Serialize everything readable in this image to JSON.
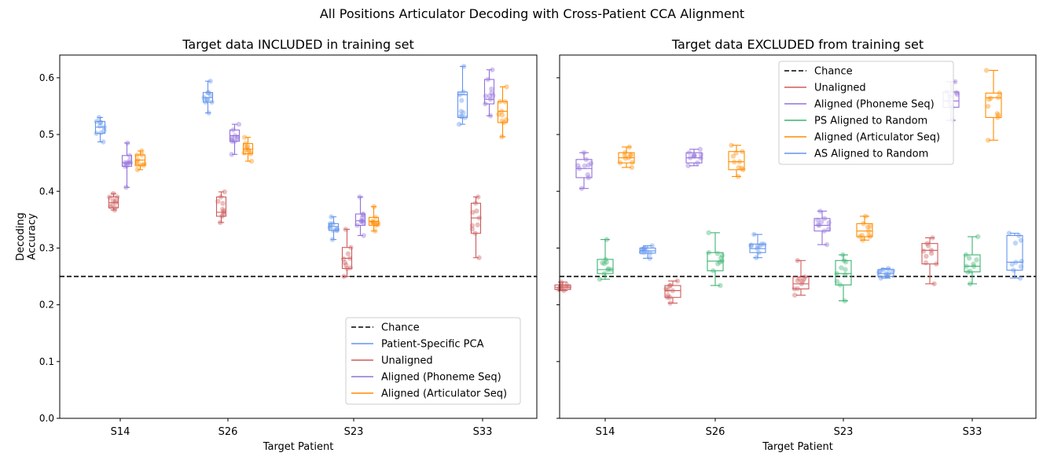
{
  "figure": {
    "suptitle": "All Positions Articulator Decoding with Cross-Patient CCA Alignment"
  },
  "colors": {
    "pca": "#6495ED",
    "unaligned": "#CD5C5C",
    "phoneme": "#9370DB",
    "articulator": "#FF8C00",
    "ps_random": "#3CB371",
    "as_random": "#6495ED",
    "chance": "#000000"
  },
  "chart_data": [
    {
      "type": "box",
      "title": "Target data INCLUDED in training set",
      "xlabel": "Target Patient",
      "ylabel": "Decoding Accuracy",
      "ylim": [
        0,
        0.64
      ],
      "yticks": [
        0.0,
        0.1,
        0.2,
        0.3,
        0.4,
        0.5,
        0.6
      ],
      "ytick_labels": [
        "0.0",
        "0.1",
        "0.2",
        "0.3",
        "0.4",
        "0.5",
        "0.6"
      ],
      "categories": [
        "S14",
        "S26",
        "S23",
        "S33"
      ],
      "chance": 0.25,
      "legend_position": "lower-right",
      "legend": [
        {
          "label": "Chance",
          "key": "chance",
          "dashed": true
        },
        {
          "label": "Patient-Specific PCA",
          "key": "pca"
        },
        {
          "label": "Unaligned",
          "key": "unaligned"
        },
        {
          "label": "Aligned (Phoneme Seq)",
          "key": "phoneme"
        },
        {
          "label": "Aligned (Articulator Seq)",
          "key": "articulator"
        }
      ],
      "series": [
        {
          "key": "pca",
          "boxes": [
            {
              "min": 0.487,
              "q1": 0.502,
              "median": 0.513,
              "q3": 0.523,
              "max": 0.53
            },
            {
              "min": 0.538,
              "q1": 0.557,
              "median": 0.565,
              "q3": 0.574,
              "max": 0.594
            },
            {
              "min": 0.315,
              "q1": 0.331,
              "median": 0.338,
              "q3": 0.343,
              "max": 0.355
            },
            {
              "min": 0.518,
              "q1": 0.53,
              "median": 0.57,
              "q3": 0.575,
              "max": 0.62
            }
          ]
        },
        {
          "key": "unaligned",
          "boxes": [
            {
              "min": 0.367,
              "q1": 0.371,
              "median": 0.38,
              "q3": 0.39,
              "max": 0.396
            },
            {
              "min": 0.345,
              "q1": 0.356,
              "median": 0.363,
              "q3": 0.39,
              "max": 0.399
            },
            {
              "min": 0.25,
              "q1": 0.264,
              "median": 0.282,
              "q3": 0.301,
              "max": 0.333
            },
            {
              "min": 0.283,
              "q1": 0.326,
              "median": 0.353,
              "q3": 0.379,
              "max": 0.39
            }
          ]
        },
        {
          "key": "phoneme",
          "boxes": [
            {
              "min": 0.407,
              "q1": 0.444,
              "median": 0.45,
              "q3": 0.463,
              "max": 0.485
            },
            {
              "min": 0.465,
              "q1": 0.488,
              "median": 0.498,
              "q3": 0.508,
              "max": 0.518
            },
            {
              "min": 0.322,
              "q1": 0.34,
              "median": 0.348,
              "q3": 0.36,
              "max": 0.39
            },
            {
              "min": 0.533,
              "q1": 0.554,
              "median": 0.562,
              "q3": 0.597,
              "max": 0.614
            }
          ]
        },
        {
          "key": "articulator",
          "boxes": [
            {
              "min": 0.438,
              "q1": 0.446,
              "median": 0.455,
              "q3": 0.464,
              "max": 0.471
            },
            {
              "min": 0.453,
              "q1": 0.466,
              "median": 0.474,
              "q3": 0.484,
              "max": 0.495
            },
            {
              "min": 0.33,
              "q1": 0.34,
              "median": 0.347,
              "q3": 0.354,
              "max": 0.373
            },
            {
              "min": 0.496,
              "q1": 0.521,
              "median": 0.541,
              "q3": 0.558,
              "max": 0.584
            }
          ]
        }
      ]
    },
    {
      "type": "box",
      "title": "Target data EXCLUDED from training set",
      "xlabel": "Target Patient",
      "ylim": [
        0,
        0.64
      ],
      "categories": [
        "S14",
        "S26",
        "S23",
        "S33"
      ],
      "chance": 0.25,
      "legend_position": "upper-center",
      "legend": [
        {
          "label": "Chance",
          "key": "chance",
          "dashed": true
        },
        {
          "label": "Unaligned",
          "key": "unaligned"
        },
        {
          "label": "Aligned (Phoneme Seq)",
          "key": "phoneme"
        },
        {
          "label": "PS Aligned to Random",
          "key": "ps_random"
        },
        {
          "label": "Aligned (Articulator Seq)",
          "key": "articulator"
        },
        {
          "label": "AS Aligned to Random",
          "key": "as_random"
        }
      ],
      "series": [
        {
          "key": "unaligned",
          "boxes": [
            {
              "min": 0.225,
              "q1": 0.227,
              "median": 0.231,
              "q3": 0.235,
              "max": 0.24
            },
            {
              "min": 0.203,
              "q1": 0.213,
              "median": 0.225,
              "q3": 0.234,
              "max": 0.242
            },
            {
              "min": 0.217,
              "q1": 0.228,
              "median": 0.237,
              "q3": 0.249,
              "max": 0.278
            },
            {
              "min": 0.237,
              "q1": 0.272,
              "median": 0.296,
              "q3": 0.308,
              "max": 0.318
            }
          ]
        },
        {
          "key": "phoneme",
          "boxes": [
            {
              "min": 0.405,
              "q1": 0.424,
              "median": 0.44,
              "q3": 0.456,
              "max": 0.468
            },
            {
              "min": 0.445,
              "q1": 0.45,
              "median": 0.459,
              "q3": 0.468,
              "max": 0.474
            },
            {
              "min": 0.306,
              "q1": 0.33,
              "median": 0.34,
              "q3": 0.352,
              "max": 0.365
            },
            {
              "min": 0.525,
              "q1": 0.548,
              "median": 0.559,
              "q3": 0.575,
              "max": 0.593
            }
          ]
        },
        {
          "key": "ps_random",
          "boxes": [
            {
              "min": 0.245,
              "q1": 0.255,
              "median": 0.262,
              "q3": 0.28,
              "max": 0.315
            },
            {
              "min": 0.234,
              "q1": 0.26,
              "median": 0.277,
              "q3": 0.292,
              "max": 0.327
            },
            {
              "min": 0.207,
              "q1": 0.235,
              "median": 0.255,
              "q3": 0.278,
              "max": 0.288
            },
            {
              "min": 0.237,
              "q1": 0.258,
              "median": 0.268,
              "q3": 0.288,
              "max": 0.32
            }
          ]
        },
        {
          "key": "articulator",
          "boxes": [
            {
              "min": 0.442,
              "q1": 0.45,
              "median": 0.459,
              "q3": 0.468,
              "max": 0.478
            },
            {
              "min": 0.426,
              "q1": 0.438,
              "median": 0.452,
              "q3": 0.47,
              "max": 0.481
            },
            {
              "min": 0.314,
              "q1": 0.32,
              "median": 0.33,
              "q3": 0.343,
              "max": 0.356
            },
            {
              "min": 0.49,
              "q1": 0.53,
              "median": 0.565,
              "q3": 0.573,
              "max": 0.613
            }
          ]
        },
        {
          "key": "as_random",
          "boxes": [
            {
              "min": 0.282,
              "q1": 0.291,
              "median": 0.295,
              "q3": 0.3,
              "max": 0.304
            },
            {
              "min": 0.283,
              "q1": 0.292,
              "median": 0.299,
              "q3": 0.307,
              "max": 0.324
            },
            {
              "min": 0.247,
              "q1": 0.25,
              "median": 0.255,
              "q3": 0.262,
              "max": 0.264
            },
            {
              "min": 0.247,
              "q1": 0.261,
              "median": 0.275,
              "q3": 0.322,
              "max": 0.326
            }
          ]
        }
      ]
    }
  ]
}
